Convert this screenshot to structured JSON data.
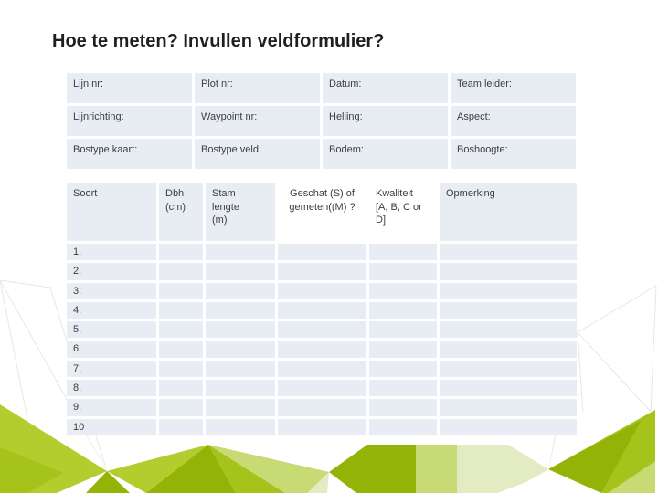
{
  "slide": {
    "title": "Hoe te meten? Invullen veldformulier?"
  },
  "info_table": {
    "rows": [
      [
        "Lijn nr:",
        "Plot nr:",
        "Datum:",
        "Team leider:"
      ],
      [
        "Lijnrichting:",
        "Waypoint nr:",
        "Helling:",
        "Aspect:"
      ],
      [
        "Bostype kaart:",
        "Bostype veld:",
        "Bodem:",
        "Boshoogte:"
      ]
    ]
  },
  "measurement_table": {
    "headers": [
      "Soort",
      "Dbh\n(cm)",
      "Stam\nlengte\n(m)",
      "Geschat (S) of\ngemeten((M) ?",
      "Kwaliteit\n[A, B, C or D]",
      "Opmerking"
    ],
    "row_labels": [
      "1.",
      "2.",
      "3.",
      "4.",
      "5.",
      "6.",
      "7.",
      "8.",
      "9.",
      "10"
    ],
    "columns_per_row": 6
  },
  "colors": {
    "accent_green_dark": "#94b307",
    "accent_green": "#a6c31c",
    "accent_green_bright": "#b4cd2e",
    "accent_green_light": "#c8da74",
    "accent_green_pale": "#e2ebc2",
    "cell_background": "#e8edf4",
    "title_text": "#1f1f1c",
    "body_text": "#3d3d3d",
    "faint_line": "#eae7dc"
  }
}
